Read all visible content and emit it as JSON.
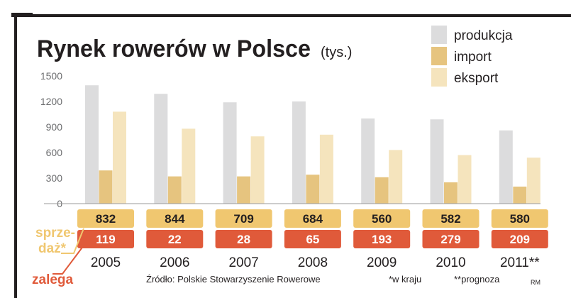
{
  "chart_data": {
    "type": "bar",
    "title": "Rynek rowerów w Polsce",
    "unit": "(tys.)",
    "categories": [
      "2005",
      "2006",
      "2007",
      "2008",
      "2009",
      "2010",
      "2011**"
    ],
    "series": [
      {
        "name": "produkcja",
        "color": "#dcdcdd",
        "values": [
          1390,
          1290,
          1190,
          1200,
          1000,
          990,
          860
        ]
      },
      {
        "name": "import",
        "color": "#e6c47f",
        "values": [
          390,
          320,
          320,
          340,
          310,
          250,
          200
        ]
      },
      {
        "name": "eksport",
        "color": "#f5e4bd",
        "values": [
          1080,
          880,
          790,
          810,
          630,
          570,
          540
        ]
      }
    ],
    "yticks": [
      "0",
      "300",
      "600",
      "900",
      "1200",
      "1500"
    ],
    "ylim": [
      0,
      1500
    ],
    "grid": false,
    "legend_position": "top-right",
    "sprzedaz": {
      "label_line1": "sprze-",
      "label_line2": "daż*",
      "color": "#f0c770",
      "values": [
        "832",
        "844",
        "709",
        "684",
        "560",
        "582",
        "580"
      ]
    },
    "zalega": {
      "label": "zalega",
      "color": "#e05a3a",
      "values": [
        "119",
        "22",
        "28",
        "65",
        "193",
        "279",
        "209"
      ]
    },
    "source": "Źródło: Polskie Stowarzyszenie Rowerowe",
    "footnote1": "*w kraju",
    "footnote2": "**prognoza",
    "credit": "RM"
  }
}
